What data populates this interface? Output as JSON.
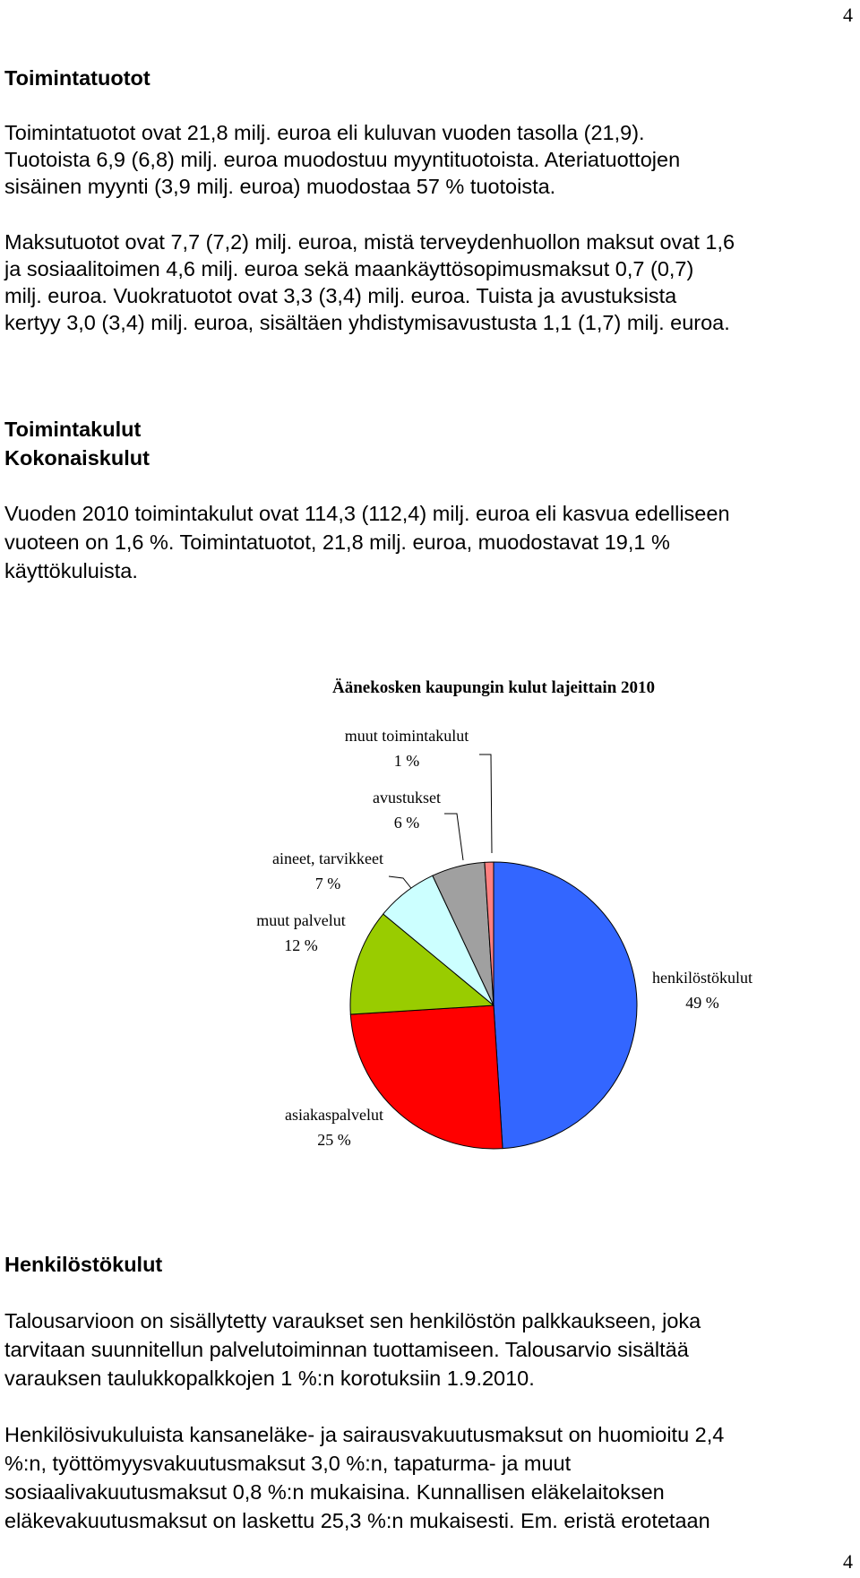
{
  "page_number": "4",
  "sections": [
    {
      "heading": [
        "Toimintatuotot"
      ],
      "paragraphs": [
        [
          "Toimintatuotot ovat 21,8 milj. euroa eli kuluvan vuoden tasolla (21,9).",
          "Tuotoista 6,9 (6,8) milj. euroa muodostuu myyntituotoista.  Ateriatuottojen",
          "sisäinen myynti (3,9 milj. euroa) muodostaa 57 % tuotoista."
        ],
        [
          "Maksutuotot ovat 7,7 (7,2) milj. euroa, mistä terveydenhuollon maksut ovat 1,6",
          "ja sosiaalitoimen 4,6 milj. euroa sekä maankäyttösopimusmaksut 0,7 (0,7)",
          "milj. euroa. Vuokratuotot ovat 3,3 (3,4) milj. euroa. Tuista ja avustuksista",
          "kertyy 3,0 (3,4) milj. euroa, sisältäen yhdistymisavustusta 1,1 (1,7) milj. euroa."
        ]
      ]
    },
    {
      "heading": [
        "Toimintakulut",
        "Kokonaiskulut"
      ],
      "paragraphs": [
        [
          "Vuoden 2010 toimintakulut ovat 114,3 (112,4) milj. euroa eli kasvua edelliseen",
          "vuoteen on 1,6 %. Toimintatuotot, 21,8 milj. euroa, muodostavat 19,1 %",
          "käyttökuluista."
        ]
      ]
    },
    {
      "heading": [
        "Henkilöstökulut"
      ],
      "paragraphs": [
        [
          "Talousarvioon on sisällytetty varaukset sen henkilöstön palkkaukseen, joka",
          "tarvitaan suunnitellun palvelutoiminnan tuottamiseen. Talousarvio sisältää",
          "varauksen taulukkopalkkojen 1 %:n korotuksiin 1.9.2010."
        ],
        [
          "Henkilösivukuluista  kansaneläke- ja sairausvakuutusmaksut on huomioitu 2,4",
          "%:n, työttömyysvakuutusmaksut 3,0 %:n, tapaturma- ja muut",
          "sosiaalivakuutusmaksut 0,8 %:n mukaisina.  Kunnallisen eläkelaitoksen",
          "eläkevakuutusmaksut on laskettu 25,3 %:n mukaisesti. Em. eristä erotetaan"
        ]
      ]
    }
  ],
  "chart_data": {
    "type": "pie",
    "title": "Äänekosken kaupungin kulut lajeittain 2010",
    "categories": [
      "henkilöstökulut",
      "asiakaspalvelut",
      "muut palvelut",
      "aineet, tarvikkeet",
      "avustukset",
      "muut toimintakulut"
    ],
    "values": [
      49,
      25,
      12,
      7,
      6,
      1
    ],
    "value_labels": [
      "49 %",
      "25 %",
      "12 %",
      "7 %",
      "6 %",
      "1 %"
    ],
    "colors": [
      "#3366ff",
      "#ff0000",
      "#99cc00",
      "#ccffff",
      "#a0a0a0",
      "#ff8080"
    ]
  }
}
